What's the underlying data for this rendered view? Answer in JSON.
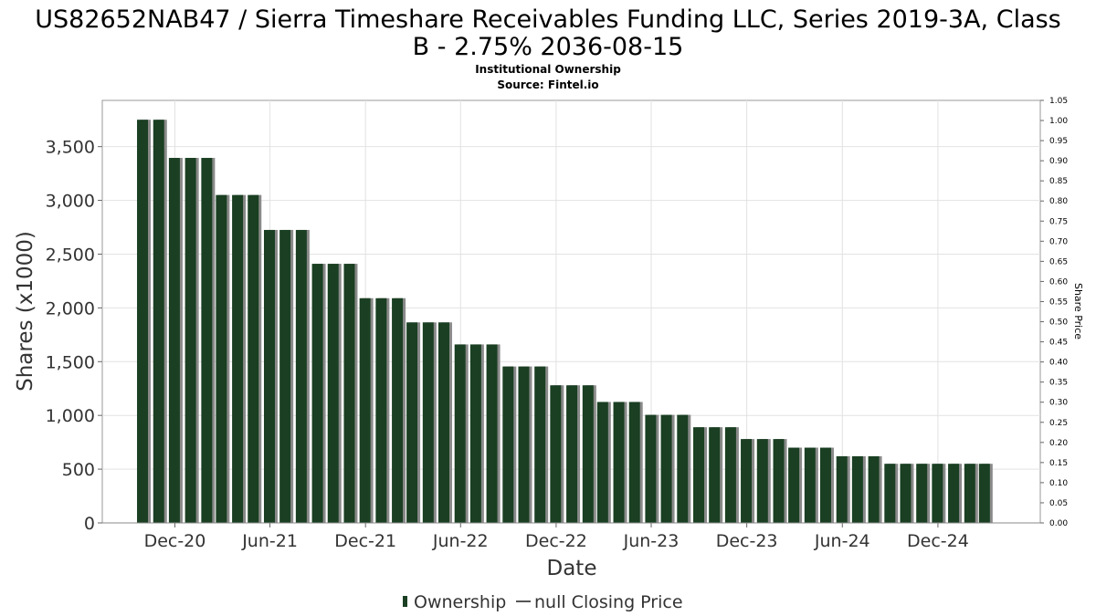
{
  "chart_data": {
    "type": "bar",
    "title_line1": "US82652NAB47 / Sierra Timeshare Receivables Funding LLC, Series 2019-3A, Class",
    "title_line2": "B - 2.75% 2036-08-15",
    "subtitle": "Institutional Ownership",
    "source": "Source: Fintel.io",
    "xlabel": "Date",
    "ylabel": "Shares (x1000)",
    "y2label": "Share Price",
    "ylim": [
      0,
      3930
    ],
    "y2lim": [
      0,
      1.05
    ],
    "yticks": [
      0,
      500,
      1000,
      1500,
      2000,
      2500,
      3000,
      3500
    ],
    "yticklabels": [
      "0",
      "500",
      "1,000",
      "1,500",
      "2,000",
      "2,500",
      "3,000",
      "3,500"
    ],
    "y2ticks": [
      0.0,
      0.05,
      0.1,
      0.15,
      0.2,
      0.25,
      0.3,
      0.35,
      0.4,
      0.45,
      0.5,
      0.55,
      0.6,
      0.65,
      0.7,
      0.75,
      0.8,
      0.85,
      0.9,
      0.95,
      1.0,
      1.05
    ],
    "y2ticklabels": [
      "0.00",
      "0.05",
      "0.10",
      "0.15",
      "0.20",
      "0.25",
      "0.30",
      "0.35",
      "0.40",
      "0.45",
      "0.50",
      "0.55",
      "0.60",
      "0.65",
      "0.70",
      "0.75",
      "0.80",
      "0.85",
      "0.90",
      "0.95",
      "1.00",
      "1.05"
    ],
    "xlim": [
      "2020-07-15",
      "2025-06-15"
    ],
    "xticks": [
      "2020-12-01",
      "2021-06-01",
      "2021-12-01",
      "2022-06-01",
      "2022-12-01",
      "2023-06-01",
      "2023-12-01",
      "2024-06-01",
      "2024-12-01"
    ],
    "xticklabels": [
      "Dec-20",
      "Jun-21",
      "Dec-21",
      "Jun-22",
      "Dec-22",
      "Jun-23",
      "Dec-23",
      "Jun-24",
      "Dec-24"
    ],
    "grid": true,
    "legend_position": "bottom-center",
    "series": [
      {
        "name": "Ownership",
        "color": "#1a3f22",
        "shadow_color": "#8a8a8a",
        "x": [
          "2020-09-30",
          "2020-10-31",
          "2020-11-30",
          "2020-12-31",
          "2021-01-31",
          "2021-02-28",
          "2021-03-31",
          "2021-04-30",
          "2021-05-31",
          "2021-06-30",
          "2021-07-31",
          "2021-08-31",
          "2021-09-30",
          "2021-10-31",
          "2021-11-30",
          "2021-12-31",
          "2022-01-31",
          "2022-02-28",
          "2022-03-31",
          "2022-04-30",
          "2022-05-31",
          "2022-06-30",
          "2022-07-31",
          "2022-08-31",
          "2022-09-30",
          "2022-10-31",
          "2022-11-30",
          "2022-12-31",
          "2023-01-31",
          "2023-02-28",
          "2023-03-31",
          "2023-04-30",
          "2023-05-31",
          "2023-06-30",
          "2023-07-31",
          "2023-08-31",
          "2023-09-30",
          "2023-10-31",
          "2023-11-30",
          "2023-12-31",
          "2024-01-31",
          "2024-02-29",
          "2024-03-31",
          "2024-04-30",
          "2024-05-31",
          "2024-06-30",
          "2024-07-31",
          "2024-08-31",
          "2024-09-30",
          "2024-10-31",
          "2024-11-30",
          "2024-12-31",
          "2025-01-31",
          "2025-02-28"
        ],
        "values": [
          3750,
          3750,
          3395,
          3395,
          3395,
          3050,
          3050,
          3050,
          2725,
          2725,
          2725,
          2410,
          2410,
          2410,
          2090,
          2090,
          2090,
          1865,
          1865,
          1865,
          1660,
          1660,
          1660,
          1455,
          1455,
          1455,
          1280,
          1280,
          1280,
          1125,
          1125,
          1125,
          1005,
          1005,
          1005,
          890,
          890,
          890,
          780,
          780,
          780,
          700,
          700,
          700,
          620,
          620,
          620,
          550,
          550,
          550,
          550,
          550,
          550,
          550
        ]
      },
      {
        "name": "null Closing Price",
        "color": "#555555",
        "x": [],
        "values": []
      }
    ]
  }
}
